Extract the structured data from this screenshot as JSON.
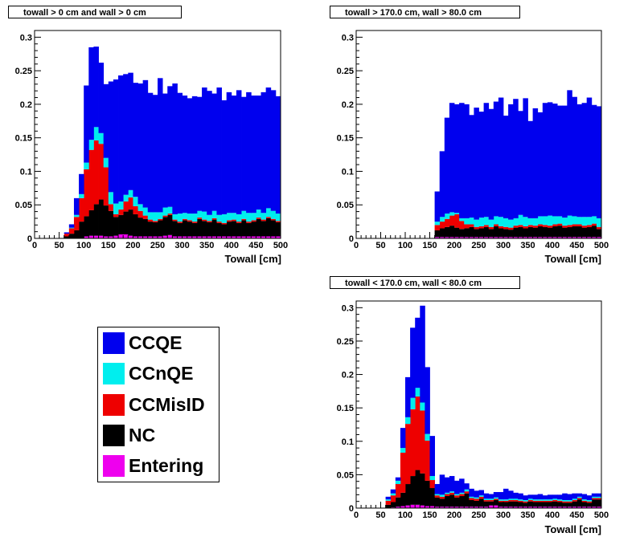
{
  "colors": {
    "CCQE": "#0000ee",
    "CCnQE": "#00eeee",
    "CCMisID": "#ee0000",
    "NC": "#000000",
    "Entering": "#ee00ee"
  },
  "legend": {
    "items": [
      {
        "label": "CCQE",
        "color": "#0000ee"
      },
      {
        "label": "CCnQE",
        "color": "#00eeee"
      },
      {
        "label": "CCMisID",
        "color": "#ee0000"
      },
      {
        "label": "NC",
        "color": "#000000"
      },
      {
        "label": "Entering",
        "color": "#ee00ee"
      }
    ]
  },
  "chart_data": [
    {
      "type": "bar",
      "stacked": true,
      "title": "towall > 0 cm and wall > 0 cm",
      "xlabel": "Towall [cm]",
      "ylabel": "",
      "xlim": [
        0,
        500
      ],
      "ylim": [
        0,
        0.31
      ],
      "x_bin_width": 10,
      "x_ticks": [
        0,
        50,
        100,
        150,
        200,
        250,
        300,
        350,
        400,
        450,
        500
      ],
      "y_ticks": [
        0,
        0.05,
        0.1,
        0.15,
        0.2,
        0.25,
        0.3
      ],
      "grid": false,
      "x_bin_start": 60,
      "series": [
        {
          "name": "Entering",
          "values": [
            0,
            0,
            0,
            0,
            0.003,
            0.004,
            0.004,
            0.004,
            0.003,
            0.003,
            0.004,
            0.006,
            0.006,
            0.004,
            0.003,
            0.003,
            0.003,
            0.003,
            0.003,
            0.003,
            0.004,
            0.005,
            0.003,
            0.003,
            0.003,
            0.003,
            0.003,
            0.003,
            0.003,
            0.003,
            0.003,
            0.003,
            0.003,
            0.003,
            0.003,
            0.003,
            0.003,
            0.003,
            0.003,
            0.003,
            0.003,
            0.003,
            0.003,
            0.003
          ]
        },
        {
          "name": "NC",
          "values": [
            0.003,
            0.007,
            0.012,
            0.025,
            0.03,
            0.038,
            0.047,
            0.054,
            0.046,
            0.038,
            0.028,
            0.029,
            0.034,
            0.039,
            0.033,
            0.028,
            0.026,
            0.022,
            0.021,
            0.024,
            0.028,
            0.03,
            0.023,
            0.02,
            0.024,
            0.022,
            0.02,
            0.026,
            0.023,
            0.021,
            0.025,
            0.02,
            0.018,
            0.022,
            0.023,
            0.02,
            0.024,
            0.02,
            0.022,
            0.026,
            0.023,
            0.027,
            0.024,
            0.021
          ]
        },
        {
          "name": "CCMisID",
          "values": [
            0.004,
            0.008,
            0.02,
            0.035,
            0.07,
            0.09,
            0.095,
            0.083,
            0.057,
            0.01,
            0.004,
            0.008,
            0.015,
            0.018,
            0.012,
            0.01,
            0.005,
            0.003,
            0.002,
            0.002,
            0.002,
            0.002,
            0.002,
            0.002,
            0.002,
            0.002,
            0.002,
            0.002,
            0.002,
            0.002,
            0.002,
            0.002,
            0.002,
            0.002,
            0.002,
            0.002,
            0.002,
            0.002,
            0.002,
            0.002,
            0.002,
            0.002,
            0.002,
            0.002
          ]
        },
        {
          "name": "CCnQE",
          "values": [
            0.0,
            0.001,
            0.003,
            0.006,
            0.01,
            0.015,
            0.02,
            0.016,
            0.014,
            0.018,
            0.016,
            0.012,
            0.01,
            0.011,
            0.014,
            0.01,
            0.012,
            0.011,
            0.013,
            0.01,
            0.012,
            0.01,
            0.008,
            0.012,
            0.009,
            0.01,
            0.012,
            0.01,
            0.012,
            0.009,
            0.011,
            0.01,
            0.013,
            0.011,
            0.01,
            0.011,
            0.012,
            0.013,
            0.011,
            0.012,
            0.01,
            0.013,
            0.012,
            0.011
          ]
        },
        {
          "name": "CCQE",
          "values": [
            0.002,
            0.005,
            0.025,
            0.03,
            0.115,
            0.138,
            0.12,
            0.105,
            0.11,
            0.165,
            0.185,
            0.188,
            0.18,
            0.175,
            0.17,
            0.18,
            0.19,
            0.178,
            0.175,
            0.2,
            0.17,
            0.18,
            0.195,
            0.18,
            0.175,
            0.172,
            0.175,
            0.17,
            0.185,
            0.185,
            0.175,
            0.19,
            0.17,
            0.18,
            0.175,
            0.185,
            0.17,
            0.18,
            0.175,
            0.17,
            0.18,
            0.18,
            0.18,
            0.175
          ]
        }
      ]
    },
    {
      "type": "bar",
      "stacked": true,
      "title": "towall > 170.0 cm, wall > 80.0 cm",
      "xlabel": "Towall [cm]",
      "ylabel": "",
      "xlim": [
        0,
        500
      ],
      "ylim": [
        0,
        0.31
      ],
      "x_bin_width": 10,
      "x_ticks": [
        0,
        50,
        100,
        150,
        200,
        250,
        300,
        350,
        400,
        450,
        500
      ],
      "y_ticks": [
        0,
        0.05,
        0.1,
        0.15,
        0.2,
        0.25,
        0.3
      ],
      "grid": false,
      "x_bin_start": 160,
      "series": [
        {
          "name": "Entering",
          "values": [
            0.002,
            0.002,
            0.002,
            0.002,
            0.002,
            0.002,
            0.002,
            0.002,
            0.002,
            0.002,
            0.002,
            0.002,
            0.002,
            0.002,
            0.002,
            0.002,
            0.002,
            0.002,
            0.002,
            0.002,
            0.002,
            0.002,
            0.002,
            0.002,
            0.002,
            0.002,
            0.002,
            0.002,
            0.002,
            0.002,
            0.002,
            0.002,
            0.002,
            0.002
          ]
        },
        {
          "name": "NC",
          "values": [
            0.01,
            0.013,
            0.015,
            0.017,
            0.014,
            0.012,
            0.013,
            0.015,
            0.012,
            0.013,
            0.015,
            0.012,
            0.016,
            0.013,
            0.012,
            0.011,
            0.014,
            0.015,
            0.013,
            0.015,
            0.014,
            0.016,
            0.015,
            0.014,
            0.016,
            0.017,
            0.014,
            0.015,
            0.016,
            0.016,
            0.014,
            0.015,
            0.017,
            0.012
          ]
        },
        {
          "name": "CCMisID",
          "values": [
            0.008,
            0.01,
            0.012,
            0.015,
            0.02,
            0.012,
            0.006,
            0.004,
            0.003,
            0.003,
            0.003,
            0.003,
            0.003,
            0.003,
            0.003,
            0.003,
            0.003,
            0.003,
            0.003,
            0.003,
            0.003,
            0.003,
            0.003,
            0.003,
            0.003,
            0.003,
            0.003,
            0.003,
            0.003,
            0.003,
            0.003,
            0.003,
            0.003,
            0.003
          ]
        },
        {
          "name": "CCnQE",
          "values": [
            0.005,
            0.007,
            0.008,
            0.005,
            0.002,
            0.004,
            0.009,
            0.01,
            0.011,
            0.013,
            0.012,
            0.011,
            0.012,
            0.014,
            0.013,
            0.012,
            0.011,
            0.015,
            0.014,
            0.01,
            0.011,
            0.012,
            0.013,
            0.015,
            0.012,
            0.011,
            0.012,
            0.014,
            0.012,
            0.011,
            0.013,
            0.012,
            0.011,
            0.013
          ]
        },
        {
          "name": "CCQE",
          "values": [
            0.045,
            0.098,
            0.143,
            0.163,
            0.162,
            0.172,
            0.17,
            0.153,
            0.167,
            0.158,
            0.17,
            0.165,
            0.171,
            0.178,
            0.153,
            0.172,
            0.178,
            0.155,
            0.177,
            0.145,
            0.164,
            0.155,
            0.169,
            0.169,
            0.168,
            0.165,
            0.167,
            0.187,
            0.178,
            0.168,
            0.17,
            0.178,
            0.166,
            0.167
          ]
        }
      ]
    },
    {
      "type": "bar",
      "stacked": true,
      "title": "towall < 170.0 cm, wall < 80.0 cm",
      "xlabel": "Towall [cm]",
      "ylabel": "",
      "xlim": [
        0,
        500
      ],
      "ylim": [
        0,
        0.31
      ],
      "x_bin_width": 10,
      "x_ticks": [
        0,
        50,
        100,
        150,
        200,
        250,
        300,
        350,
        400,
        450,
        500
      ],
      "y_ticks": [
        0,
        0.05,
        0.1,
        0.15,
        0.2,
        0.25,
        0.3
      ],
      "grid": false,
      "x_bin_start": 60,
      "series": [
        {
          "name": "Entering",
          "values": [
            0,
            0.001,
            0.002,
            0.003,
            0.004,
            0.005,
            0.005,
            0.004,
            0.003,
            0.003,
            0.002,
            0.002,
            0.002,
            0.002,
            0.002,
            0.002,
            0.002,
            0.002,
            0.002,
            0.002,
            0.002,
            0.004,
            0.004,
            0.002,
            0.002,
            0.002,
            0.002,
            0.002,
            0.002,
            0.002,
            0.002,
            0.002,
            0.002,
            0.002,
            0.002,
            0.002,
            0.002,
            0.002,
            0.002,
            0.002,
            0.002,
            0.002,
            0.002,
            0.002
          ]
        },
        {
          "name": "NC",
          "values": [
            0.005,
            0.008,
            0.014,
            0.02,
            0.032,
            0.043,
            0.052,
            0.048,
            0.038,
            0.027,
            0.014,
            0.012,
            0.016,
            0.018,
            0.014,
            0.016,
            0.02,
            0.01,
            0.009,
            0.012,
            0.008,
            0.006,
            0.008,
            0.007,
            0.007,
            0.008,
            0.008,
            0.007,
            0.006,
            0.008,
            0.007,
            0.007,
            0.007,
            0.007,
            0.008,
            0.007,
            0.006,
            0.006,
            0.008,
            0.011,
            0.007,
            0.006,
            0.011,
            0.011
          ]
        },
        {
          "name": "CCMisID",
          "values": [
            0.006,
            0.01,
            0.02,
            0.06,
            0.09,
            0.1,
            0.11,
            0.094,
            0.06,
            0.012,
            0.003,
            0.003,
            0.003,
            0.003,
            0.003,
            0.003,
            0.003,
            0.003,
            0.003,
            0.003,
            0.002,
            0.002,
            0.002,
            0.002,
            0.002,
            0.002,
            0.002,
            0.002,
            0.002,
            0.002,
            0.002,
            0.002,
            0.002,
            0.002,
            0.002,
            0.002,
            0.002,
            0.002,
            0.002,
            0.002,
            0.002,
            0.002,
            0.002,
            0.002
          ]
        },
        {
          "name": "CCnQE",
          "values": [
            0.002,
            0.003,
            0.005,
            0.007,
            0.01,
            0.017,
            0.013,
            0.012,
            0.01,
            0.006,
            0.002,
            0.003,
            0.002,
            0.002,
            0.002,
            0.002,
            0.003,
            0.002,
            0.002,
            0.002,
            0.002,
            0.002,
            0.002,
            0.002,
            0.002,
            0.002,
            0.002,
            0.002,
            0.002,
            0.002,
            0.002,
            0.002,
            0.002,
            0.002,
            0.002,
            0.002,
            0.002,
            0.002,
            0.002,
            0.002,
            0.002,
            0.002,
            0.002,
            0.002
          ]
        },
        {
          "name": "CCQE",
          "values": [
            0.004,
            0.006,
            0.005,
            0.03,
            0.06,
            0.105,
            0.105,
            0.145,
            0.1,
            0.06,
            0.015,
            0.03,
            0.023,
            0.023,
            0.02,
            0.021,
            0.009,
            0.012,
            0.01,
            0.008,
            0.008,
            0.007,
            0.008,
            0.011,
            0.016,
            0.012,
            0.009,
            0.009,
            0.007,
            0.006,
            0.007,
            0.008,
            0.006,
            0.007,
            0.006,
            0.007,
            0.01,
            0.009,
            0.008,
            0.005,
            0.008,
            0.007,
            0.005,
            0.005
          ]
        }
      ]
    }
  ]
}
